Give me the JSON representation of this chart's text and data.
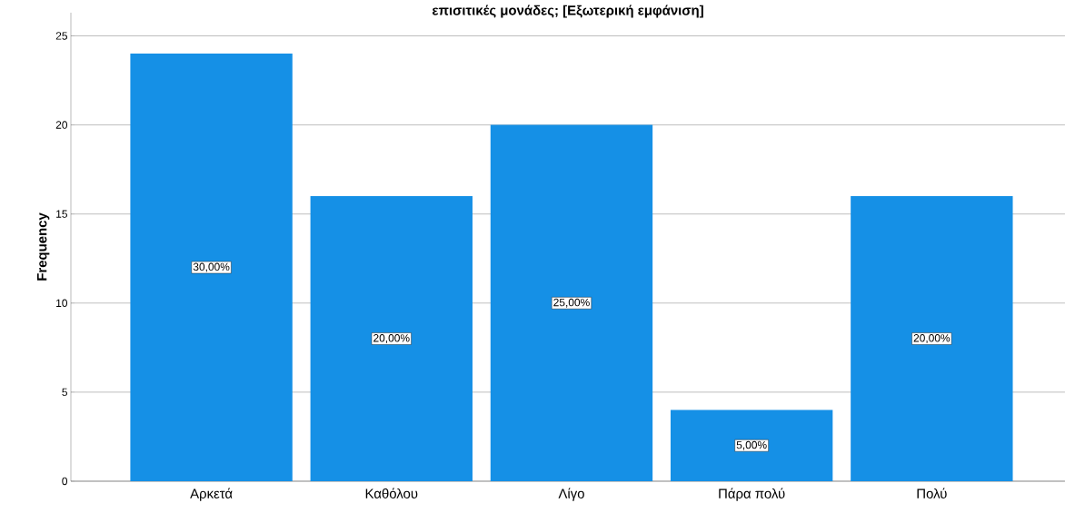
{
  "chart_data": {
    "type": "bar",
    "title": "επισιτικές μονάδες; [Εξωτερική εμφάνιση]",
    "ylabel": "Frequency",
    "categories": [
      "Αρκετά",
      "Καθόλου",
      "Λίγο",
      "Πάρα πολύ",
      "Πολύ"
    ],
    "values": [
      24,
      16,
      20,
      4,
      16
    ],
    "annotations": [
      "30,00%",
      "20,00%",
      "25,00%",
      "5,00%",
      "20,00%"
    ],
    "color": "#1590e6",
    "ylim": [
      0,
      26.3
    ],
    "yticks": [
      0,
      5,
      10,
      15,
      20,
      25
    ],
    "grid": "y"
  }
}
